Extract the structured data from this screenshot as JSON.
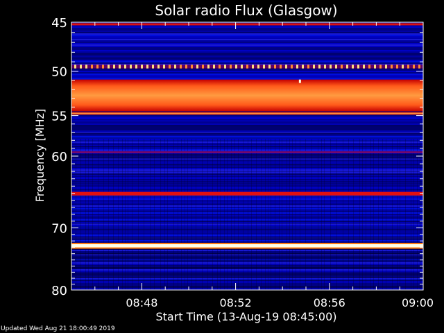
{
  "chart_data": {
    "type": "heatmap",
    "title": "Solar radio Flux (Glasgow)",
    "ylabel": "Frequency [MHz]",
    "xlabel": "Start Time (13-Aug-19 08:45:00)",
    "x_ticks": [
      "08:48",
      "08:52",
      "08:56",
      "09:00"
    ],
    "x_tick_minutes": [
      48,
      52,
      56,
      60
    ],
    "xlim_minutes": [
      45,
      60
    ],
    "y_ticks": [
      45,
      50,
      55,
      60,
      70,
      80
    ],
    "ylim": [
      45,
      80
    ],
    "y_scale": "log",
    "grid": false,
    "bands": [
      {
        "freq_from": 45.1,
        "freq_to": 45.3,
        "level": "red"
      },
      {
        "freq_from": 49.3,
        "freq_to": 49.7,
        "level": "dotted-red"
      },
      {
        "freq_from": 50.9,
        "freq_to": 54.5,
        "level": "orange"
      },
      {
        "freq_from": 54.6,
        "freq_to": 54.9,
        "level": "orange"
      },
      {
        "freq_from": 59.4,
        "freq_to": 59.6,
        "level": "purple"
      },
      {
        "freq_from": 64.8,
        "freq_to": 65.3,
        "level": "red"
      },
      {
        "freq_from": 72.5,
        "freq_to": 73.0,
        "level": "white"
      }
    ],
    "colors": {
      "background": "#000000",
      "low": "#0000cc",
      "mid": "#c00000",
      "high": "#ff8c1a",
      "peak": "#ffffe0"
    }
  },
  "footer": {
    "updated": "Updated Wed Aug 21 18:00:49 2019"
  }
}
